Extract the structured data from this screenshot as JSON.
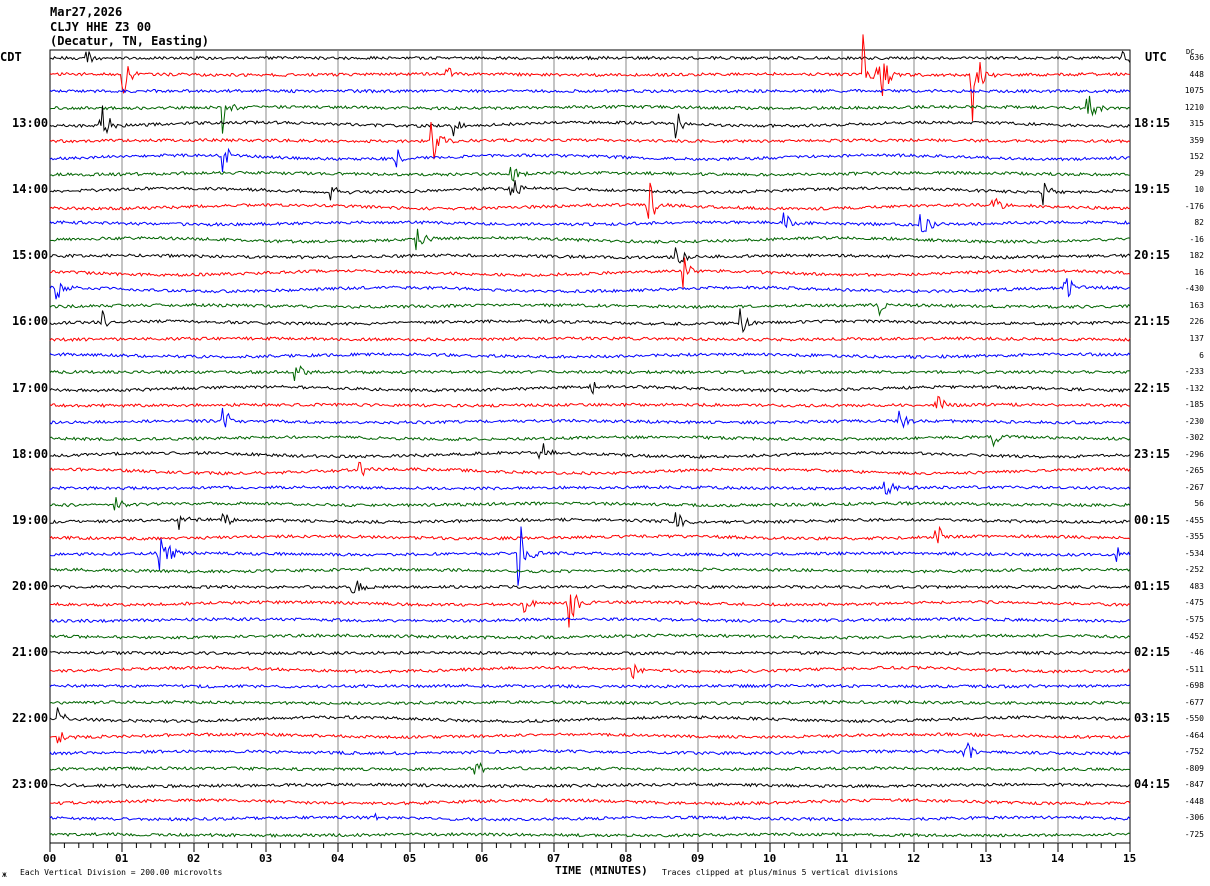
{
  "header": {
    "date": "Mar27,2026",
    "station": "CLJY HHE Z3 00",
    "location": "(Decatur, TN, Easting)"
  },
  "left_tz": "CDT",
  "right_tz": "UTC",
  "dc_label": "DC",
  "footer": {
    "scale": "Each Vertical Division =  200.00 microvolts",
    "xlabel": "TIME (MINUTES)",
    "clip": "Traces clipped at plus/minus 5 vertical divisions"
  },
  "colors": [
    "#000000",
    "#ff0000",
    "#0000ff",
    "#006400"
  ],
  "chart_data": {
    "type": "line",
    "title": "CLJY HHE Z3 00 helicorder",
    "xlabel": "TIME (MINUTES)",
    "xlim": [
      0,
      15
    ],
    "x_ticks": [
      "00",
      "01",
      "02",
      "03",
      "04",
      "05",
      "06",
      "07",
      "08",
      "09",
      "10",
      "11",
      "12",
      "13",
      "14",
      "15"
    ],
    "left_labels": [
      {
        "trace": 4,
        "text": "13:00"
      },
      {
        "trace": 8,
        "text": "14:00"
      },
      {
        "trace": 12,
        "text": "15:00"
      },
      {
        "trace": 16,
        "text": "16:00"
      },
      {
        "trace": 20,
        "text": "17:00"
      },
      {
        "trace": 24,
        "text": "18:00"
      },
      {
        "trace": 28,
        "text": "19:00"
      },
      {
        "trace": 32,
        "text": "20:00"
      },
      {
        "trace": 36,
        "text": "21:00"
      },
      {
        "trace": 40,
        "text": "22:00"
      },
      {
        "trace": 44,
        "text": "23:00"
      }
    ],
    "right_labels": [
      {
        "trace": 4,
        "text": "18:15"
      },
      {
        "trace": 8,
        "text": "19:15"
      },
      {
        "trace": 12,
        "text": "20:15"
      },
      {
        "trace": 16,
        "text": "21:15"
      },
      {
        "trace": 20,
        "text": "22:15"
      },
      {
        "trace": 24,
        "text": "23:15"
      },
      {
        "trace": 28,
        "text": "00:15"
      },
      {
        "trace": 32,
        "text": "01:15"
      },
      {
        "trace": 36,
        "text": "02:15"
      },
      {
        "trace": 40,
        "text": "03:15"
      },
      {
        "trace": 44,
        "text": "04:15"
      }
    ],
    "dc_offsets": [
      636,
      448,
      1075,
      1210,
      315,
      359,
      152,
      29,
      10,
      -176,
      82,
      -16,
      182,
      16,
      -430,
      163,
      226,
      137,
      6,
      -233,
      -132,
      -185,
      -230,
      -302,
      -296,
      -265,
      -267,
      56,
      -455,
      -355,
      -534,
      -252,
      483,
      -475,
      -575,
      -452,
      -46,
      -511,
      -698,
      -677,
      -550,
      -464,
      -752,
      -809,
      -847,
      -448,
      -306,
      -725
    ],
    "events_divisions": [
      [
        1,
        1.0,
        1.5
      ],
      [
        1,
        11.3,
        3
      ],
      [
        1,
        11.5,
        3
      ],
      [
        1,
        12.8,
        3.5
      ],
      [
        1,
        5.5,
        0.8
      ],
      [
        3,
        2.4,
        2
      ],
      [
        3,
        14.4,
        1.5
      ],
      [
        0,
        0.5,
        0.6
      ],
      [
        0,
        14.9,
        0.8
      ],
      [
        4,
        0.7,
        2
      ],
      [
        4,
        8.7,
        1
      ],
      [
        4,
        5.6,
        0.7
      ],
      [
        5,
        5.3,
        2
      ],
      [
        6,
        2.4,
        1.5
      ],
      [
        6,
        4.8,
        1
      ],
      [
        7,
        6.4,
        0.7
      ],
      [
        8,
        3.9,
        1
      ],
      [
        8,
        6.4,
        1
      ],
      [
        8,
        13.8,
        0.8
      ],
      [
        9,
        8.3,
        2
      ],
      [
        9,
        13.1,
        0.7
      ],
      [
        10,
        12.1,
        1
      ],
      [
        10,
        10.2,
        0.7
      ],
      [
        11,
        5.1,
        0.8
      ],
      [
        12,
        8.7,
        1
      ],
      [
        13,
        8.8,
        1.2
      ],
      [
        14,
        0.1,
        0.8
      ],
      [
        14,
        14.1,
        1
      ],
      [
        15,
        11.5,
        0.8
      ],
      [
        16,
        0.7,
        1
      ],
      [
        16,
        9.6,
        1
      ],
      [
        19,
        3.4,
        1
      ],
      [
        20,
        7.5,
        0.7
      ],
      [
        21,
        12.3,
        1
      ],
      [
        22,
        2.4,
        1
      ],
      [
        22,
        11.8,
        0.8
      ],
      [
        23,
        13.1,
        0.8
      ],
      [
        24,
        6.8,
        1.5
      ],
      [
        25,
        4.3,
        0.8
      ],
      [
        26,
        11.6,
        1
      ],
      [
        27,
        0.9,
        0.8
      ],
      [
        28,
        1.8,
        0.8
      ],
      [
        28,
        2.4,
        0.8
      ],
      [
        28,
        8.7,
        0.8
      ],
      [
        29,
        12.3,
        1
      ],
      [
        30,
        1.5,
        3
      ],
      [
        30,
        6.5,
        3
      ],
      [
        30,
        14.8,
        0.7
      ],
      [
        32,
        4.2,
        1
      ],
      [
        33,
        7.2,
        2.5
      ],
      [
        33,
        6.6,
        1
      ],
      [
        37,
        8.1,
        0.6
      ],
      [
        40,
        0.1,
        0.7
      ],
      [
        41,
        0.1,
        0.7
      ],
      [
        42,
        12.7,
        1
      ],
      [
        43,
        5.9,
        0.8
      ],
      [
        46,
        4.5,
        0.6
      ]
    ]
  }
}
